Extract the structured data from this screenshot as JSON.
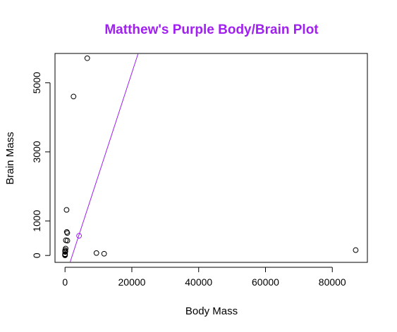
{
  "chart_data": {
    "type": "scatter",
    "title": "Matthew's Purple Body/Brain Plot",
    "xlabel": "Body Mass",
    "ylabel": "Brain Mass",
    "xlim": [
      -3000,
      90500
    ],
    "ylim": [
      -200,
      5850
    ],
    "xticks": [
      0,
      20000,
      40000,
      60000,
      80000
    ],
    "xtick_labels": [
      "0",
      "20000",
      "40000",
      "60000",
      "80000"
    ],
    "yticks": [
      0,
      1000,
      3000,
      5000
    ],
    "ytick_labels": [
      "0",
      "1000",
      "3000",
      "5000"
    ],
    "grid": false,
    "legend": "none",
    "colors": {
      "title": "#a020f0",
      "fit_line": "#a020f0",
      "points": "#000000",
      "highlight_point": "#a020f0",
      "axis": "#000000"
    },
    "points": [
      {
        "x": 6654,
        "y": 5712
      },
      {
        "x": 2547,
        "y": 4603
      },
      {
        "x": 87000,
        "y": 155
      },
      {
        "x": 9400,
        "y": 70
      },
      {
        "x": 11700,
        "y": 50
      },
      {
        "x": 4200,
        "y": 570,
        "highlight": true
      },
      {
        "x": 465,
        "y": 1320
      },
      {
        "x": 529,
        "y": 680
      },
      {
        "x": 680,
        "y": 650
      },
      {
        "x": 250,
        "y": 440
      },
      {
        "x": 700,
        "y": 430
      },
      {
        "x": 180,
        "y": 200
      },
      {
        "x": 35,
        "y": 155
      },
      {
        "x": 100,
        "y": 120
      },
      {
        "x": 55,
        "y": 100
      },
      {
        "x": 27,
        "y": 115
      },
      {
        "x": 10,
        "y": 40
      },
      {
        "x": 3,
        "y": 25
      },
      {
        "x": 1,
        "y": 5
      },
      {
        "x": 0.5,
        "y": 10
      }
    ],
    "fit_line": {
      "from": {
        "x": 1500,
        "y": -200
      },
      "to": {
        "x": 22400,
        "y": 6000
      }
    }
  }
}
